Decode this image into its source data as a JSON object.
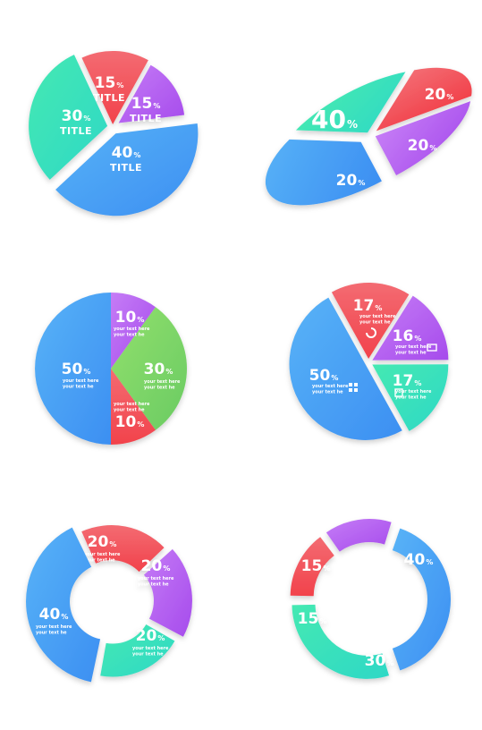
{
  "colors": {
    "red": "#f4575f",
    "purple": "#b55cf2",
    "teal": "#34e3b2",
    "blue": "#4aa2f5",
    "green": "#7fd66a"
  },
  "chart_data": [
    {
      "type": "pie",
      "slices": [
        {
          "value": 15,
          "label": "15",
          "unit": "%",
          "caption": "TITLE",
          "color": "red"
        },
        {
          "value": 15,
          "label": "15",
          "unit": "%",
          "caption": "TITLE",
          "color": "purple"
        },
        {
          "value": 40,
          "label": "40",
          "unit": "%",
          "caption": "TITLE",
          "color": "blue"
        },
        {
          "value": 30,
          "label": "30",
          "unit": "%",
          "caption": "TITLE",
          "color": "teal"
        }
      ]
    },
    {
      "type": "pie",
      "style": "tilted-ellipse",
      "slices": [
        {
          "value": 40,
          "label": "40",
          "unit": "%",
          "color": "blue"
        },
        {
          "value": 20,
          "label": "20",
          "unit": "%",
          "color": "teal"
        },
        {
          "value": 20,
          "label": "20",
          "unit": "%",
          "color": "red"
        },
        {
          "value": 20,
          "label": "20",
          "unit": "%",
          "color": "purple"
        }
      ]
    },
    {
      "type": "pie",
      "slices": [
        {
          "value": 10,
          "label": "10",
          "unit": "%",
          "caption": [
            "your text here",
            "your text he"
          ],
          "color": "purple"
        },
        {
          "value": 30,
          "label": "30",
          "unit": "%",
          "caption": [
            "your text here",
            "your text he"
          ],
          "color": "green"
        },
        {
          "value": 10,
          "label": "10",
          "unit": "%",
          "caption": [
            "your text here",
            "your text he"
          ],
          "color": "red"
        },
        {
          "value": 50,
          "label": "50",
          "unit": "%",
          "caption": [
            "your text here",
            "your text he"
          ],
          "color": "blue"
        }
      ]
    },
    {
      "type": "pie",
      "slices": [
        {
          "value": 17,
          "label": "17",
          "unit": "%",
          "caption": [
            "your text here",
            "your text he"
          ],
          "color": "red"
        },
        {
          "value": 16,
          "label": "16",
          "unit": "%",
          "caption": [
            "your text here",
            "your text he"
          ],
          "color": "purple"
        },
        {
          "value": 17,
          "label": "17",
          "unit": "%",
          "caption": [
            "your text here",
            "your text he"
          ],
          "color": "teal"
        },
        {
          "value": 50,
          "label": "50",
          "unit": "%",
          "caption": [
            "your text here",
            "your text he"
          ],
          "color": "blue"
        }
      ]
    },
    {
      "type": "donut",
      "slices": [
        {
          "value": 20,
          "label": "20",
          "unit": "%",
          "caption": [
            "your text here",
            "your text he"
          ],
          "color": "red"
        },
        {
          "value": 20,
          "label": "20",
          "unit": "%",
          "caption": [
            "your text here",
            "your text he"
          ],
          "color": "purple"
        },
        {
          "value": 20,
          "label": "20",
          "unit": "%",
          "caption": [
            "your text here",
            "your text he"
          ],
          "color": "teal"
        },
        {
          "value": 40,
          "label": "40",
          "unit": "%",
          "caption": [
            "your text here",
            "your text he"
          ],
          "color": "blue"
        }
      ]
    },
    {
      "type": "donut",
      "slices": [
        {
          "value": 40,
          "label": "40",
          "unit": "%",
          "color": "blue"
        },
        {
          "value": 30,
          "label": "30",
          "unit": "%",
          "color": "teal"
        },
        {
          "value": 15,
          "label": "15",
          "unit": "%",
          "color": "red"
        },
        {
          "value": 15,
          "label": "15",
          "unit": "%",
          "color": "purple"
        }
      ]
    }
  ]
}
